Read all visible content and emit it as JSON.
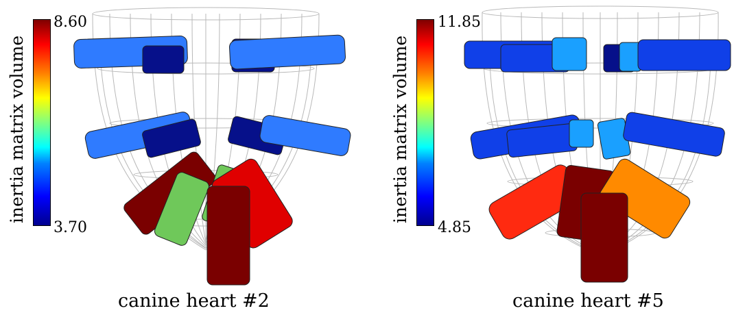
{
  "panels": [
    {
      "caption": "canine heart #2",
      "colorbar": {
        "label": "inertia matrix volume",
        "max": "8.60",
        "min": "3.70"
      }
    },
    {
      "caption": "canine heart #5",
      "colorbar": {
        "label": "inertia matrix volume",
        "max": "11.85",
        "min": "4.85"
      }
    }
  ],
  "colormap": "jet",
  "colors": {
    "wireframe": "#b8b8b8",
    "dark_red": "#7a0000",
    "red": "#e00000",
    "bright_red": "#ff2a10",
    "orange": "#ff8a00",
    "green": "#6fc85a",
    "light_blue": "#2f7bff",
    "blue": "#1040e8",
    "navy": "#06108a",
    "cyan_blue": "#1aa0ff"
  }
}
